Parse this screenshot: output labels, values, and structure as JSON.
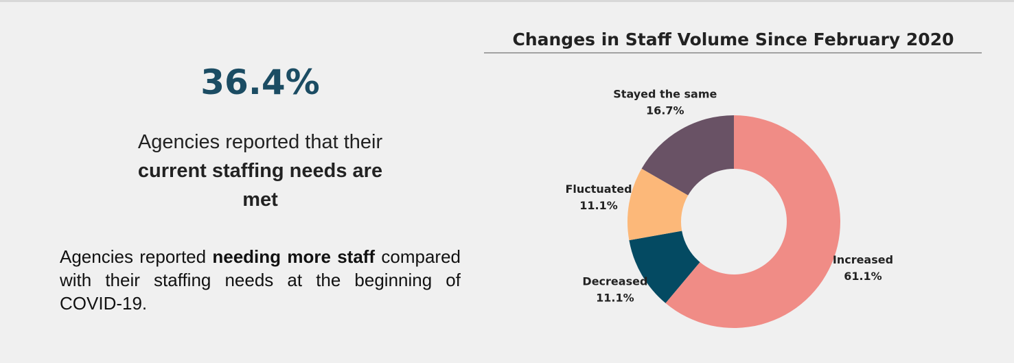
{
  "highlight": {
    "stat": "36.4%",
    "statement": [
      "Agencies reported that their ",
      "current staffing needs are met"
    ],
    "note": [
      "Agencies reported ",
      "needing more staff",
      " compared with their staffing needs at the beginning of COVID-19."
    ]
  },
  "chart_data": {
    "type": "donut",
    "title": "Changes in Staff Volume Since February 2020",
    "categories": [
      "Increased",
      "Decreased",
      "Fluctuated",
      "Stayed the same"
    ],
    "values": [
      61.1,
      11.1,
      11.1,
      16.7
    ],
    "value_labels": [
      "61.1%",
      "11.1%",
      "11.1%",
      "16.7%"
    ],
    "colors": [
      "#f08c86",
      "#044a62",
      "#fcb879",
      "#695265"
    ]
  }
}
